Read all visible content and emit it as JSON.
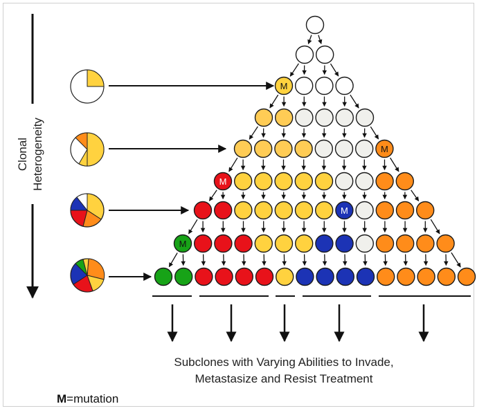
{
  "axis_label": {
    "line1": "Clonal",
    "line2": "Heterogeneity"
  },
  "caption": {
    "line1": "Subclones with Varying Abilities to Invade,",
    "line2": "Metastasize and Resist Treatment"
  },
  "legend": {
    "symbol": "M",
    "text": "=mutation"
  },
  "mutation_marker": "M",
  "colors": {
    "white": "#ffffff",
    "grey": "#f0f0ec",
    "yellow": "#ffd23f",
    "pale_yellow": "#ffcc55",
    "orange": "#ff8c1a",
    "red": "#e8121a",
    "blue": "#1c33b5",
    "green": "#17a317"
  },
  "rows": [
    [
      "white"
    ],
    [
      "white",
      "white"
    ],
    [
      "yellow_M",
      "white",
      "white",
      "white"
    ],
    [
      "pale_yellow",
      "pale_yellow",
      "grey",
      "grey",
      "grey",
      "grey"
    ],
    [
      "pale_yellow",
      "pale_yellow",
      "pale_yellow",
      "pale_yellow",
      "grey",
      "grey",
      "grey",
      "orange_M"
    ],
    [
      "red_M",
      "yellow",
      "yellow",
      "yellow",
      "yellow",
      "yellow",
      "grey",
      "grey",
      "orange",
      "orange"
    ],
    [
      "red",
      "red",
      "yellow",
      "yellow",
      "yellow",
      "yellow",
      "yellow",
      "blue_M",
      "grey",
      "orange",
      "orange",
      "orange"
    ],
    [
      "green_M",
      "red",
      "red",
      "red",
      "yellow",
      "yellow",
      "yellow",
      "blue",
      "blue",
      "grey",
      "orange",
      "orange",
      "orange",
      "orange"
    ],
    [
      "green",
      "green",
      "red",
      "red",
      "red",
      "red",
      "yellow",
      "blue",
      "blue",
      "blue",
      "blue",
      "orange",
      "orange",
      "orange",
      "orange",
      "orange"
    ]
  ]
}
